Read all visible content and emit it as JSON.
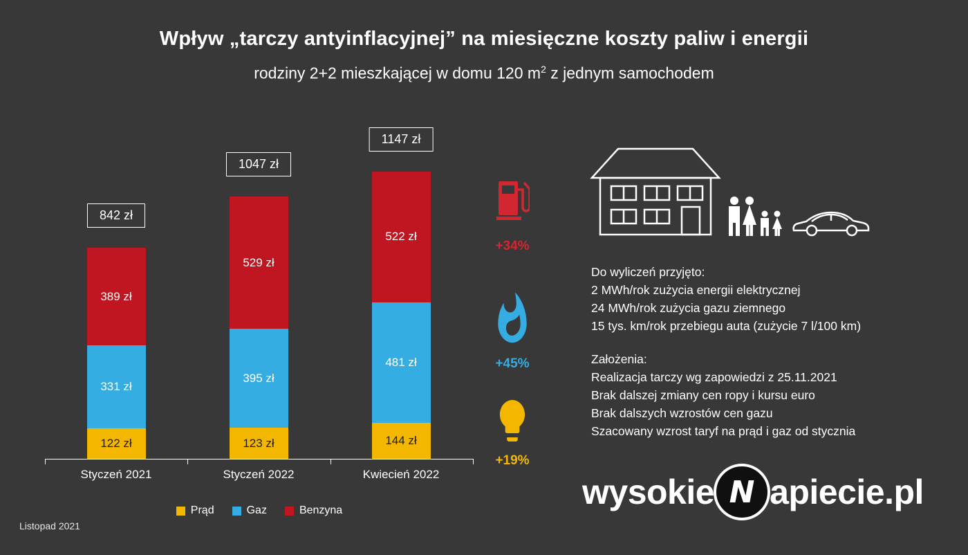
{
  "page": {
    "title": "Wpływ „tarczy antyinflacyjnej” na miesięczne koszty paliw i energii",
    "subtitle_prefix": "rodziny 2+2 mieszkającej w domu 120 m",
    "subtitle_sup": "2",
    "subtitle_suffix": " z jednym samochodem",
    "footer_date": "Listopad 2021",
    "logo": {
      "pre": "wysokie",
      "mark": "N",
      "post": "apiecie.pl"
    },
    "background_color": "#383838"
  },
  "chart_data": {
    "type": "bar",
    "stacked": true,
    "unit": "zł",
    "categories": [
      "Styczeń 2021",
      "Styczeń 2022",
      "Kwiecień 2022"
    ],
    "series": [
      {
        "key": "prad",
        "name": "Prąd",
        "color": "#F3B700",
        "value_label_color": "#1d1d1d",
        "values": [
          122,
          123,
          144
        ]
      },
      {
        "key": "gaz",
        "name": "Gaz",
        "color": "#35ADE2",
        "value_label_color": "#ffffff",
        "values": [
          331,
          395,
          481
        ]
      },
      {
        "key": "benzyna",
        "name": "Benzyna",
        "color": "#C01621",
        "value_label_color": "#ffffff",
        "values": [
          389,
          529,
          522
        ]
      }
    ],
    "totals": [
      842,
      1047,
      1147
    ],
    "legend_position": "bottom",
    "grid": false
  },
  "changes": [
    {
      "series": "Benzyna",
      "icon": "fuel-pump-icon",
      "label": "+34%",
      "color": "#D22730"
    },
    {
      "series": "Gaz",
      "icon": "flame-icon",
      "label": "+45%",
      "color": "#35ADE2"
    },
    {
      "series": "Prąd",
      "icon": "bulb-icon",
      "label": "+19%",
      "color": "#F3B700"
    }
  ],
  "assumptions": {
    "intro": [
      "Do wyliczeń przyjęto:",
      "2 MWh/rok zużycia energii elektrycznej",
      "24 MWh/rok zużycia gazu ziemnego",
      "15 tys. km/rok przebiegu auta (zużycie 7 l/100 km)"
    ],
    "zalozenia": [
      "Założenia:",
      "Realizacja tarczy wg zapowiedzi z 25.11.2021",
      "Brak dalszej zmiany cen ropy i kursu euro",
      "Brak dalszych wzrostów cen gazu",
      "Szacowany wzrost taryf na prąd i gaz od stycznia"
    ]
  }
}
